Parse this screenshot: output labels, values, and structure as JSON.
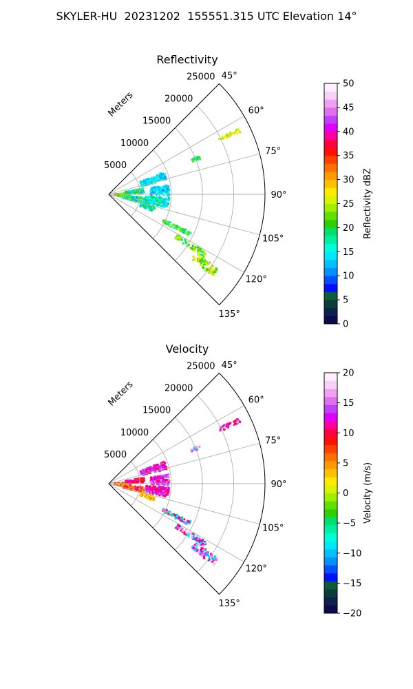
{
  "figure": {
    "title": "SKYLER-HU  20231202  155551.315 UTC Elevation 14°"
  },
  "colors": {
    "grid": "#b0b0b0",
    "frame": "#000000"
  },
  "chart_data": [
    {
      "type": "polar-sector",
      "title": "Reflectivity",
      "radial_label": "Meters",
      "radial_ticks": [
        5000,
        10000,
        15000,
        20000,
        25000
      ],
      "radial_tick_labels": [
        "5000",
        "10000",
        "15000",
        "20000",
        "25000"
      ],
      "radial_max": 25000,
      "angle_range": [
        45,
        135
      ],
      "angle_ticks": [
        45,
        60,
        75,
        90,
        105,
        120,
        135
      ],
      "angle_tick_labels": [
        "45°",
        "60°",
        "75°",
        "90°",
        "105°",
        "120°",
        "135°"
      ],
      "grid": true,
      "colorbar": {
        "label": "Reflectivity dBZ",
        "min": 0,
        "max": 50,
        "ticks": [
          0,
          5,
          10,
          15,
          20,
          25,
          30,
          35,
          40,
          45,
          50
        ],
        "tick_labels": [
          "0",
          "5",
          "10",
          "15",
          "20",
          "25",
          "30",
          "35",
          "40",
          "45",
          "50"
        ],
        "colors": [
          "#0b0b4a",
          "#10204e",
          "#0a3d3a",
          "#0e5a3a",
          "#0010ff",
          "#0050ff",
          "#0090ff",
          "#00c0ff",
          "#00e8ff",
          "#00ffd8",
          "#00f0a0",
          "#00e070",
          "#30d000",
          "#60e000",
          "#a0f000",
          "#d8f400",
          "#ffea00",
          "#ffc000",
          "#ff9a00",
          "#ff7000",
          "#ff4000",
          "#ff1000",
          "#ff0040",
          "#ff00a0",
          "#e000ff",
          "#c040ff",
          "#e070f0",
          "#f0a0f0",
          "#f8d0f8",
          "#fff0ff"
        ]
      },
      "blobs": [
        {
          "az": 92,
          "r": 2200,
          "w": 12,
          "dr": 2600,
          "values": [
            18,
            22,
            26,
            28,
            20,
            30
          ]
        },
        {
          "az": 84,
          "r": 4200,
          "w": 8,
          "dr": 3000,
          "values": [
            12,
            16,
            20,
            22,
            14
          ]
        },
        {
          "az": 100,
          "r": 4000,
          "w": 10,
          "dr": 3400,
          "values": [
            16,
            20,
            18,
            24,
            12
          ]
        },
        {
          "az": 72,
          "r": 7500,
          "w": 8,
          "dr": 4200,
          "values": [
            12,
            13,
            14,
            15,
            16
          ]
        },
        {
          "az": 86,
          "r": 8200,
          "w": 10,
          "dr": 3000,
          "values": [
            11,
            14,
            16,
            13
          ]
        },
        {
          "az": 98,
          "r": 7800,
          "w": 10,
          "dr": 3800,
          "values": [
            13,
            16,
            18,
            20,
            14
          ]
        },
        {
          "az": 108,
          "r": 6500,
          "w": 6,
          "dr": 2400,
          "values": [
            14,
            18,
            20
          ]
        },
        {
          "az": 116,
          "r": 12000,
          "w": 3,
          "dr": 5000,
          "values": [
            16,
            20,
            22,
            24
          ]
        },
        {
          "az": 122,
          "r": 15500,
          "w": 3,
          "dr": 5500,
          "values": [
            18,
            20,
            22,
            24,
            26
          ]
        },
        {
          "az": 126,
          "r": 19000,
          "w": 4,
          "dr": 4500,
          "values": [
            20,
            22,
            24,
            26,
            28
          ]
        },
        {
          "az": 68,
          "r": 15000,
          "w": 2,
          "dr": 1800,
          "values": [
            18,
            22
          ]
        },
        {
          "az": 64,
          "r": 21500,
          "w": 2,
          "dr": 3500,
          "values": [
            24,
            26,
            28,
            30
          ]
        }
      ]
    },
    {
      "type": "polar-sector",
      "title": "Velocity",
      "radial_label": "Meters",
      "radial_ticks": [
        5000,
        10000,
        15000,
        20000,
        25000
      ],
      "radial_tick_labels": [
        "5000",
        "10000",
        "15000",
        "20000",
        "25000"
      ],
      "radial_max": 25000,
      "angle_range": [
        45,
        135
      ],
      "angle_ticks": [
        45,
        60,
        75,
        90,
        105,
        120,
        135
      ],
      "angle_tick_labels": [
        "45°",
        "60°",
        "75°",
        "90°",
        "105°",
        "120°",
        "135°"
      ],
      "grid": true,
      "colorbar": {
        "label": "Velocity (m/s)",
        "min": -20,
        "max": 20,
        "ticks": [
          -20,
          -15,
          -10,
          -5,
          0,
          5,
          10,
          15,
          20
        ],
        "tick_labels": [
          "−20",
          "−15",
          "−10",
          "−5",
          "0",
          "5",
          "10",
          "15",
          "20"
        ],
        "colors": [
          "#0b0b4a",
          "#10204e",
          "#0a3d3a",
          "#0e5a3a",
          "#0010ff",
          "#0050ff",
          "#0090ff",
          "#00c0ff",
          "#00e8ff",
          "#00ffd8",
          "#00f0a0",
          "#00e070",
          "#30d000",
          "#60e000",
          "#a0f000",
          "#d8f400",
          "#ffea00",
          "#ffc000",
          "#ff9a00",
          "#ff7000",
          "#ff4000",
          "#ff1000",
          "#ff0040",
          "#ff00a0",
          "#e000ff",
          "#c040ff",
          "#e070f0",
          "#f0a0f0",
          "#f8d0f8",
          "#fff0ff"
        ]
      },
      "blobs": [
        {
          "az": 92,
          "r": 2200,
          "w": 12,
          "dr": 2600,
          "values": [
            2,
            4,
            6,
            8,
            3,
            12
          ]
        },
        {
          "az": 84,
          "r": 4200,
          "w": 8,
          "dr": 3000,
          "values": [
            8,
            10,
            11,
            12,
            9
          ]
        },
        {
          "az": 100,
          "r": 4000,
          "w": 10,
          "dr": 3400,
          "values": [
            4,
            6,
            8,
            10,
            11
          ]
        },
        {
          "az": 72,
          "r": 7500,
          "w": 8,
          "dr": 4200,
          "values": [
            10,
            11,
            12,
            13,
            14
          ]
        },
        {
          "az": 86,
          "r": 8200,
          "w": 10,
          "dr": 3000,
          "values": [
            11,
            12,
            14,
            15
          ]
        },
        {
          "az": 98,
          "r": 7800,
          "w": 10,
          "dr": 3800,
          "values": [
            10,
            11,
            12,
            13,
            15
          ]
        },
        {
          "az": 108,
          "r": 6500,
          "w": 6,
          "dr": 2400,
          "values": [
            2,
            3,
            5
          ]
        },
        {
          "az": 116,
          "r": 12000,
          "w": 3,
          "dr": 5000,
          "values": [
            -10,
            11,
            14,
            -5
          ]
        },
        {
          "az": 122,
          "r": 15500,
          "w": 3,
          "dr": 5500,
          "values": [
            12,
            -12,
            16,
            11,
            -8
          ]
        },
        {
          "az": 126,
          "r": 19000,
          "w": 4,
          "dr": 4500,
          "values": [
            12,
            14,
            -10,
            16,
            11
          ]
        },
        {
          "az": 68,
          "r": 15000,
          "w": 2,
          "dr": 1800,
          "values": [
            -9,
            15
          ]
        },
        {
          "az": 64,
          "r": 21500,
          "w": 2,
          "dr": 3500,
          "values": [
            11,
            12,
            14,
            10
          ]
        }
      ]
    }
  ]
}
